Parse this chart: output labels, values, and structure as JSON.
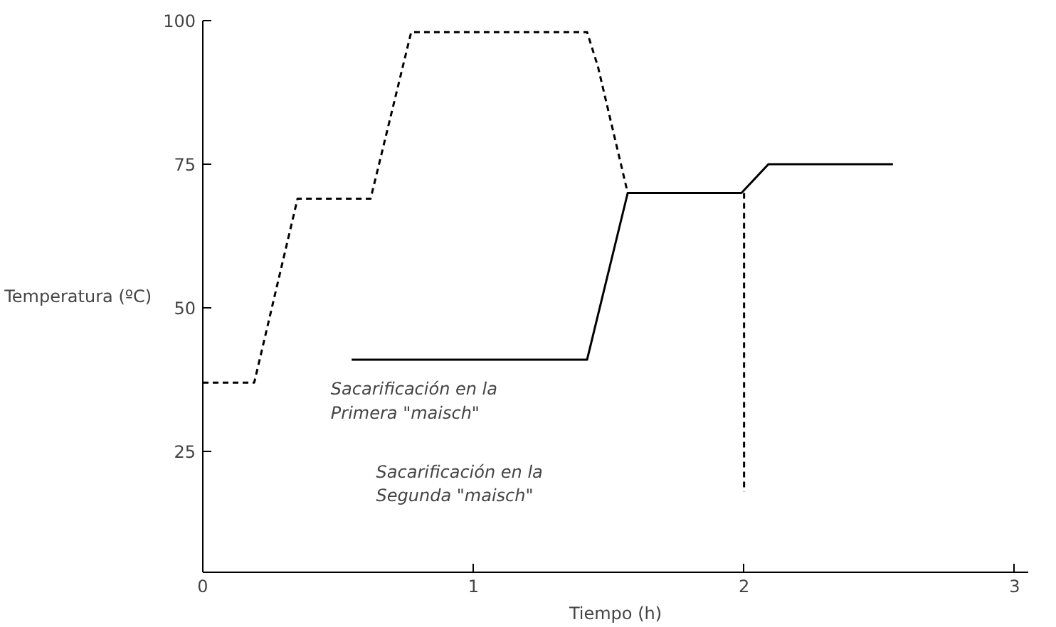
{
  "chart_data": {
    "type": "line",
    "xlabel": "Tiempo (h)",
    "ylabel": "Temperatura (ºC)",
    "xlim": [
      0,
      3.05
    ],
    "ylim": [
      4,
      100
    ],
    "xticks": [
      0,
      1,
      2,
      3
    ],
    "yticks": [
      25,
      50,
      75,
      100
    ],
    "grid": false,
    "series": [
      {
        "color": "#000000",
        "line_style": "dashed",
        "x": [
          0,
          0.19,
          0.35,
          0.62,
          0.77,
          1.42,
          1.46,
          1.57
        ],
        "values": [
          37,
          37,
          69,
          69,
          98,
          98,
          92,
          70
        ]
      },
      {
        "color": "#000000",
        "line_style": "solid",
        "x": [
          0.55,
          1.42,
          1.57,
          1.99,
          2.09,
          2.55
        ],
        "values": [
          41,
          41,
          70,
          70,
          75,
          75
        ]
      },
      {
        "color": "#000000",
        "line_style": "dashed",
        "x": [
          2,
          2
        ],
        "values": [
          70,
          18
        ]
      }
    ],
    "annotations": [
      "Sacarificación en la\nPrimera \"maisch\"",
      "Sacarificación en la\nSegunda \"maisch\""
    ]
  }
}
